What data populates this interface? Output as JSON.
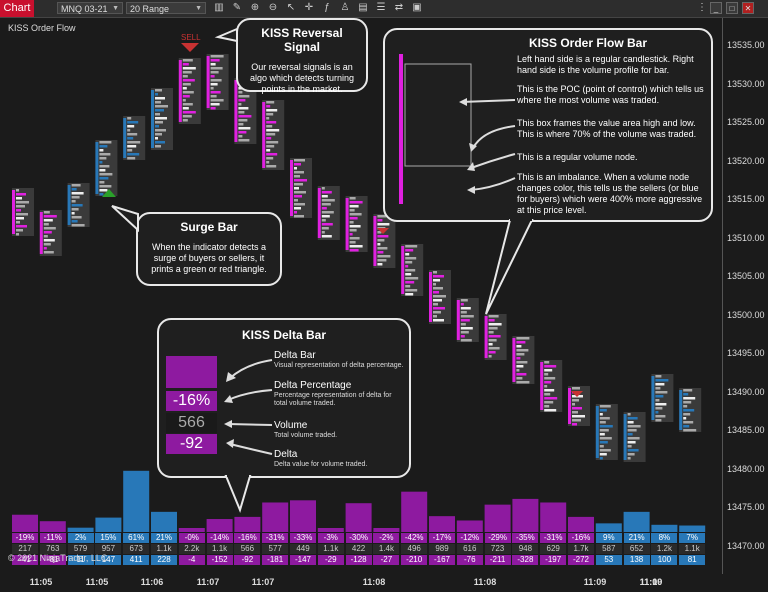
{
  "toolbar": {
    "chart_tab": "Chart",
    "instrument": "MNQ 03-21",
    "period": "20 Range"
  },
  "chart_title": "KISS Order Flow",
  "colors": {
    "purple": "#8e1aa0",
    "magenta": "#e020e0",
    "blue": "#2878b8",
    "green": "#2aa02a",
    "red": "#c83232",
    "bg": "#1b1b1b"
  },
  "y_axis": [
    "13535.00",
    "13530.00",
    "13525.00",
    "13520.00",
    "13515.00",
    "13510.00",
    "13505.00",
    "13500.00",
    "13495.00",
    "13490.00",
    "13485.00",
    "13480.00",
    "13475.00",
    "13470.00"
  ],
  "x_axis": [
    "11:05",
    "11:05",
    "11:06",
    "11:07",
    "11:07",
    "11:08",
    "11:08",
    "11:09",
    "11:09",
    "11:10"
  ],
  "sell_label": "SELL",
  "callouts": {
    "reversal": {
      "title": "KISS Reversal Signal",
      "text": "Our reversal signals is an algo which detects turning points in the market."
    },
    "surge": {
      "title": "Surge Bar",
      "text": "When the indicator detects a surge of buyers or sellers, it prints a green or red triangle."
    },
    "orderflow": {
      "title": "KISS Order Flow Bar",
      "line1": "Left hand side is a regular candlestick. Right hand side is the volume profile for bar.",
      "line2": "This is the POC (point of control) which tells us where the most volume was traded.",
      "line3": "This box frames the value area high and low. This is where 70% of the volume was traded.",
      "line4": "This is a regular volume node.",
      "line5": "This is an imbalance. When a volume node changes color, this tells us the sellers (or blue for buyers) which were 400% more aggressive at this price level."
    },
    "delta": {
      "title": "KISS Delta Bar",
      "pct_value": "-16%",
      "vol_value": "566",
      "delta_value": "-92",
      "items": [
        {
          "title": "Delta Bar",
          "sub": "Visual representation of delta percentage."
        },
        {
          "title": "Delta Percentage",
          "sub": "Percentage representation of delta for total volume traded."
        },
        {
          "title": "Volume",
          "sub": "Total volume traded."
        },
        {
          "title": "Delta",
          "sub": "Delta value for volume traded."
        }
      ]
    }
  },
  "bars": [
    {
      "pct": "-19%",
      "vol": "217",
      "delta": "-41",
      "side": "sell",
      "h": 0.24
    },
    {
      "pct": "-11%",
      "vol": "763",
      "delta": "-81",
      "side": "sell",
      "h": 0.15
    },
    {
      "pct": "2%",
      "vol": "579",
      "delta": "11",
      "side": "buy",
      "h": 0.06
    },
    {
      "pct": "15%",
      "vol": "957",
      "delta": "147",
      "side": "buy",
      "h": 0.2
    },
    {
      "pct": "61%",
      "vol": "673",
      "delta": "411",
      "side": "buy",
      "h": 0.85
    },
    {
      "pct": "21%",
      "vol": "1.1k",
      "delta": "228",
      "side": "buy",
      "h": 0.28
    },
    {
      "pct": "-0%",
      "vol": "2.2k",
      "delta": "-4",
      "side": "sell",
      "h": 0.02
    },
    {
      "pct": "-14%",
      "vol": "1.1k",
      "delta": "-152",
      "side": "sell",
      "h": 0.18
    },
    {
      "pct": "-16%",
      "vol": "566",
      "delta": "-92",
      "side": "sell",
      "h": 0.21
    },
    {
      "pct": "-31%",
      "vol": "577",
      "delta": "-181",
      "side": "sell",
      "h": 0.41
    },
    {
      "pct": "-33%",
      "vol": "449",
      "delta": "-147",
      "side": "sell",
      "h": 0.44
    },
    {
      "pct": "-3%",
      "vol": "1.1k",
      "delta": "-29",
      "side": "sell",
      "h": 0.05
    },
    {
      "pct": "-30%",
      "vol": "422",
      "delta": "-128",
      "side": "sell",
      "h": 0.4
    },
    {
      "pct": "-2%",
      "vol": "1.4k",
      "delta": "-27",
      "side": "sell",
      "h": 0.04
    },
    {
      "pct": "-42%",
      "vol": "496",
      "delta": "-210",
      "side": "sell",
      "h": 0.56
    },
    {
      "pct": "-17%",
      "vol": "989",
      "delta": "-167",
      "side": "sell",
      "h": 0.22
    },
    {
      "pct": "-12%",
      "vol": "616",
      "delta": "-76",
      "side": "sell",
      "h": 0.16
    },
    {
      "pct": "-29%",
      "vol": "723",
      "delta": "-211",
      "side": "sell",
      "h": 0.38
    },
    {
      "pct": "-35%",
      "vol": "948",
      "delta": "-328",
      "side": "sell",
      "h": 0.46
    },
    {
      "pct": "-31%",
      "vol": "629",
      "delta": "-197",
      "side": "sell",
      "h": 0.41
    },
    {
      "pct": "-16%",
      "vol": "1.7k",
      "delta": "-272",
      "side": "sell",
      "h": 0.21
    },
    {
      "pct": "9%",
      "vol": "587",
      "delta": "53",
      "side": "buy",
      "h": 0.12
    },
    {
      "pct": "21%",
      "vol": "652",
      "delta": "138",
      "side": "buy",
      "h": 0.28
    },
    {
      "pct": "8%",
      "vol": "1.2k",
      "delta": "100",
      "side": "buy",
      "h": 0.1
    },
    {
      "pct": "7%",
      "vol": "1.1k",
      "delta": "81",
      "side": "buy",
      "h": 0.09
    }
  ],
  "copyright": "© 2021 NinjaTrader, LLC"
}
